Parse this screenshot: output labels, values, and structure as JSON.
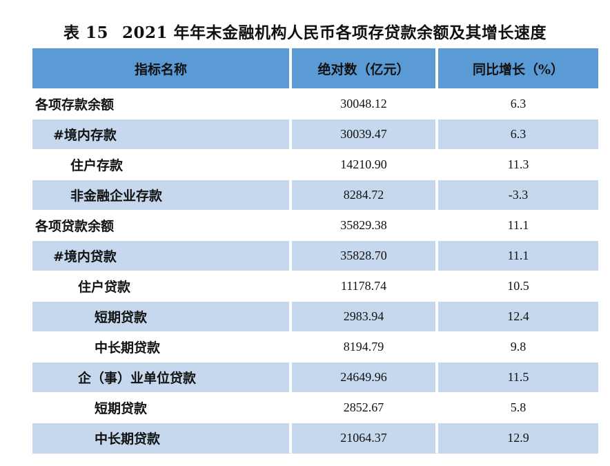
{
  "title": {
    "number": "表 15",
    "text": "2021 年年末金融机构人民币各项存贷款余额及其增长速度"
  },
  "headers": {
    "name": "指标名称",
    "absolute": "绝对数（亿元）",
    "growth": "同比增长（%）"
  },
  "rows": [
    {
      "name": "各项存款余额",
      "absolute": "30048.12",
      "growth": "6.3"
    },
    {
      "name": "#境内存款",
      "absolute": "30039.47",
      "growth": "6.3"
    },
    {
      "name": "住户存款",
      "absolute": "14210.90",
      "growth": "11.3"
    },
    {
      "name": "非金融企业存款",
      "absolute": "8284.72",
      "growth": "-3.3"
    },
    {
      "name": "各项贷款余额",
      "absolute": "35829.38",
      "growth": "11.1"
    },
    {
      "name": "#境内贷款",
      "absolute": "35828.70",
      "growth": "11.1"
    },
    {
      "name": "住户贷款",
      "absolute": "11178.74",
      "growth": "10.5"
    },
    {
      "name": "短期贷款",
      "absolute": "2983.94",
      "growth": "12.4"
    },
    {
      "name": "中长期贷款",
      "absolute": "8194.79",
      "growth": "9.8"
    },
    {
      "name": "企（事）业单位贷款",
      "absolute": "24649.96",
      "growth": "11.5"
    },
    {
      "name": "短期贷款",
      "absolute": "2852.67",
      "growth": "5.8"
    },
    {
      "name": "中长期贷款",
      "absolute": "21064.37",
      "growth": "12.9"
    }
  ],
  "colors": {
    "header_bg": "#5b9bd5",
    "stripe_bg": "#c5d8ee"
  }
}
